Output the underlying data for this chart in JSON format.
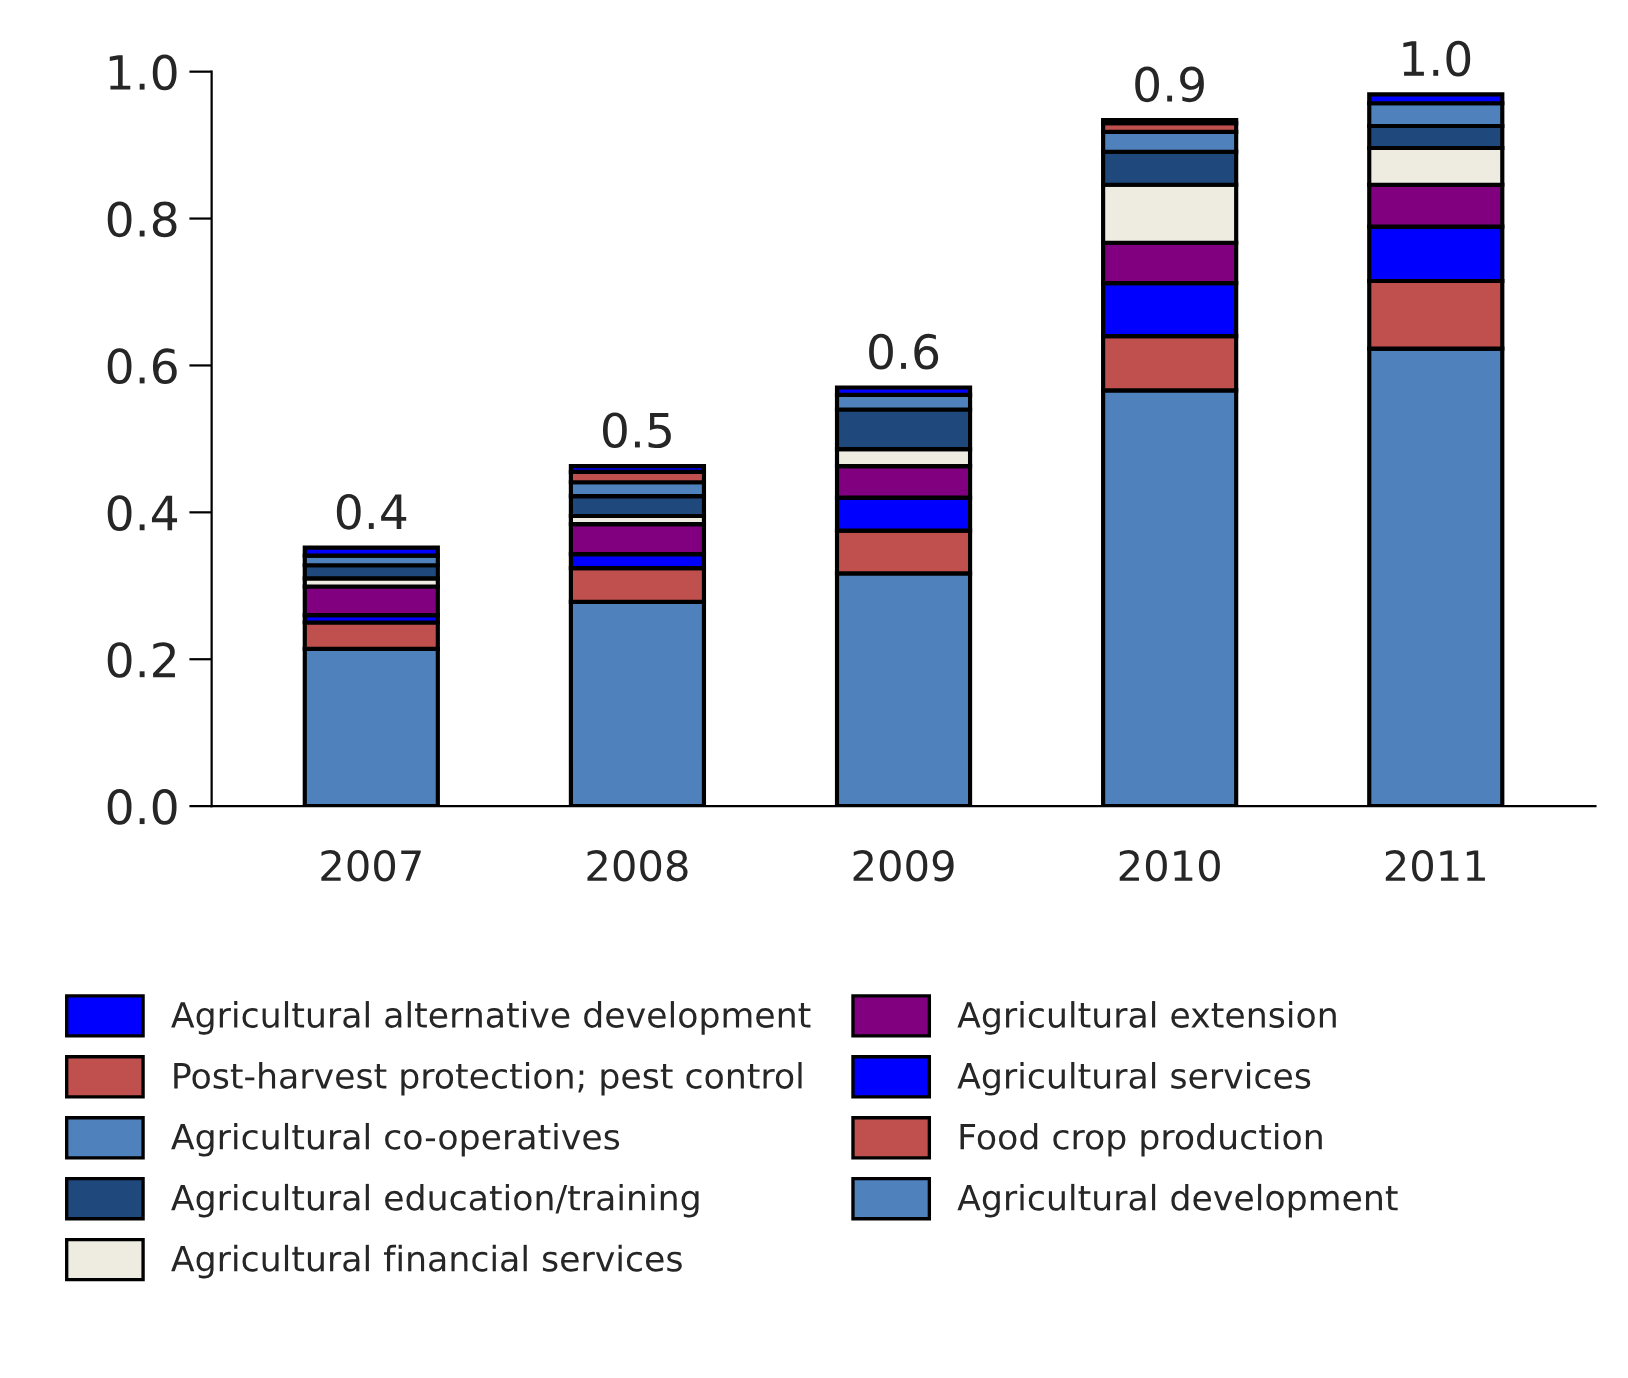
{
  "chart_data": {
    "type": "bar",
    "stacked": true,
    "categories": [
      "2007",
      "2008",
      "2009",
      "2010",
      "2011"
    ],
    "series": [
      {
        "name": "Agricultural development",
        "color": "#4f81bd",
        "values": [
          0.214,
          0.278,
          0.317,
          0.566,
          0.623
        ]
      },
      {
        "name": "Food crop production",
        "color": "#c0504d",
        "values": [
          0.036,
          0.046,
          0.058,
          0.074,
          0.092
        ]
      },
      {
        "name": "Agricultural services",
        "color": "#0000ff",
        "values": [
          0.01,
          0.019,
          0.045,
          0.072,
          0.074
        ]
      },
      {
        "name": "Agricultural extension",
        "color": "#800080",
        "values": [
          0.039,
          0.041,
          0.043,
          0.055,
          0.057
        ]
      },
      {
        "name": "Agricultural financial services",
        "color": "#eeece1",
        "values": [
          0.011,
          0.011,
          0.023,
          0.079,
          0.05
        ]
      },
      {
        "name": "Agricultural education/training",
        "color": "#1f497d",
        "values": [
          0.018,
          0.027,
          0.054,
          0.045,
          0.03
        ]
      },
      {
        "name": "Agricultural co-operatives",
        "color": "#4f81bd",
        "values": [
          0.013,
          0.019,
          0.02,
          0.027,
          0.031
        ]
      },
      {
        "name": "Post-harvest protection; pest control",
        "color": "#c0504d",
        "values": [
          null,
          0.014,
          null,
          0.012,
          null
        ]
      },
      {
        "name": "Agricultural alternative development",
        "color": "#0000ff",
        "values": [
          0.011,
          0.008,
          0.01,
          0.004,
          0.012
        ]
      }
    ],
    "totals": [
      "0.4",
      "0.5",
      "0.6",
      "0.9",
      "1.0"
    ],
    "ylim": [
      0,
      1.0
    ],
    "yticks": [
      {
        "value": 0,
        "label": "0.0"
      },
      {
        "value": 0.2,
        "label": "0.2"
      },
      {
        "value": 0.4,
        "label": "0.4"
      },
      {
        "value": 0.6,
        "label": "0.6"
      },
      {
        "value": 0.8,
        "label": "0.8"
      },
      {
        "value": 1.0,
        "label": "1.0"
      }
    ],
    "grid": false,
    "legend": "bottom"
  }
}
